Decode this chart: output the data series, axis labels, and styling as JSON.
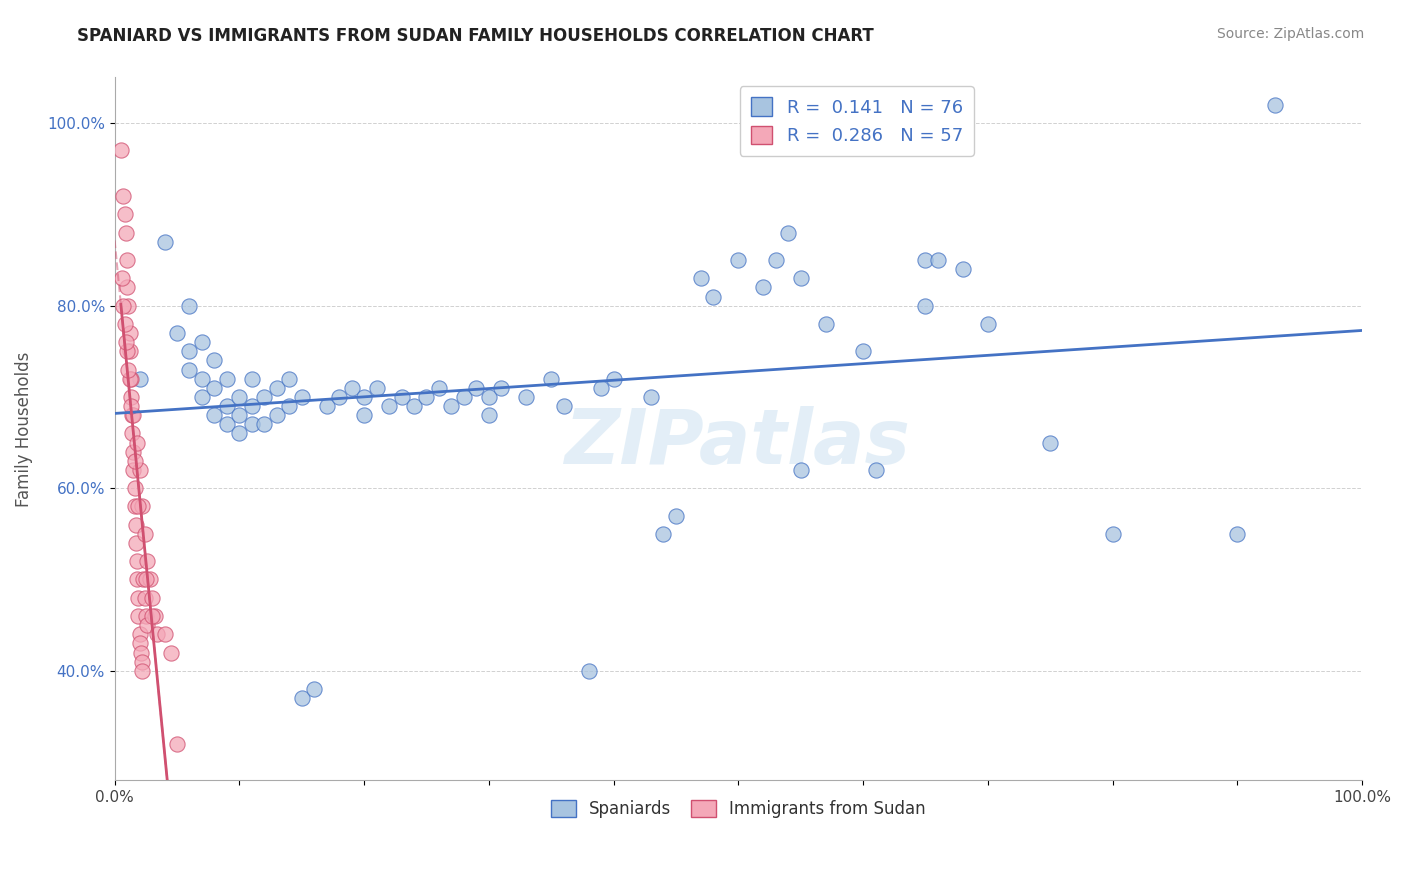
{
  "title": "SPANIARD VS IMMIGRANTS FROM SUDAN FAMILY HOUSEHOLDS CORRELATION CHART",
  "source": "Source: ZipAtlas.com",
  "xlabel": "",
  "ylabel": "Family Households",
  "xlim": [
    0.0,
    1.0
  ],
  "ylim": [
    0.28,
    1.05
  ],
  "xticks": [
    0.0,
    0.1,
    0.2,
    0.3,
    0.4,
    0.5,
    0.6,
    0.7,
    0.8,
    0.9,
    1.0
  ],
  "xtick_labels": [
    "0.0%",
    "",
    "",
    "",
    "",
    "",
    "",
    "",
    "",
    "",
    "100.0%"
  ],
  "ytick_labels": [
    "40.0%",
    "60.0%",
    "80.0%",
    "100.0%"
  ],
  "yticks": [
    0.4,
    0.6,
    0.8,
    1.0
  ],
  "blue_color": "#a8c4e0",
  "pink_color": "#f4a8b8",
  "blue_line_color": "#4472c4",
  "pink_line_color": "#d05070",
  "R_blue": 0.141,
  "N_blue": 76,
  "R_pink": 0.286,
  "N_pink": 57,
  "legend_label_blue": "Spaniards",
  "legend_label_pink": "Immigrants from Sudan",
  "watermark": "ZIPatlas",
  "blue_scatter": [
    [
      0.02,
      0.72
    ],
    [
      0.04,
      0.87
    ],
    [
      0.05,
      0.77
    ],
    [
      0.06,
      0.8
    ],
    [
      0.06,
      0.75
    ],
    [
      0.06,
      0.73
    ],
    [
      0.07,
      0.76
    ],
    [
      0.07,
      0.72
    ],
    [
      0.07,
      0.7
    ],
    [
      0.08,
      0.74
    ],
    [
      0.08,
      0.71
    ],
    [
      0.08,
      0.68
    ],
    [
      0.09,
      0.72
    ],
    [
      0.09,
      0.69
    ],
    [
      0.09,
      0.67
    ],
    [
      0.1,
      0.7
    ],
    [
      0.1,
      0.68
    ],
    [
      0.1,
      0.66
    ],
    [
      0.11,
      0.72
    ],
    [
      0.11,
      0.69
    ],
    [
      0.11,
      0.67
    ],
    [
      0.12,
      0.7
    ],
    [
      0.12,
      0.67
    ],
    [
      0.13,
      0.71
    ],
    [
      0.13,
      0.68
    ],
    [
      0.14,
      0.72
    ],
    [
      0.14,
      0.69
    ],
    [
      0.15,
      0.7
    ],
    [
      0.15,
      0.37
    ],
    [
      0.16,
      0.38
    ],
    [
      0.17,
      0.69
    ],
    [
      0.18,
      0.7
    ],
    [
      0.19,
      0.71
    ],
    [
      0.2,
      0.7
    ],
    [
      0.2,
      0.68
    ],
    [
      0.21,
      0.71
    ],
    [
      0.22,
      0.69
    ],
    [
      0.23,
      0.7
    ],
    [
      0.24,
      0.69
    ],
    [
      0.25,
      0.7
    ],
    [
      0.26,
      0.71
    ],
    [
      0.27,
      0.69
    ],
    [
      0.28,
      0.7
    ],
    [
      0.29,
      0.71
    ],
    [
      0.3,
      0.7
    ],
    [
      0.3,
      0.68
    ],
    [
      0.31,
      0.71
    ],
    [
      0.33,
      0.7
    ],
    [
      0.35,
      0.72
    ],
    [
      0.36,
      0.69
    ],
    [
      0.38,
      0.4
    ],
    [
      0.39,
      0.71
    ],
    [
      0.4,
      0.72
    ],
    [
      0.43,
      0.7
    ],
    [
      0.44,
      0.55
    ],
    [
      0.45,
      0.57
    ],
    [
      0.47,
      0.83
    ],
    [
      0.48,
      0.81
    ],
    [
      0.5,
      0.85
    ],
    [
      0.52,
      0.82
    ],
    [
      0.53,
      0.85
    ],
    [
      0.54,
      0.88
    ],
    [
      0.55,
      0.83
    ],
    [
      0.57,
      0.78
    ],
    [
      0.6,
      0.75
    ],
    [
      0.61,
      0.62
    ],
    [
      0.65,
      0.85
    ],
    [
      0.65,
      0.8
    ],
    [
      0.66,
      0.85
    ],
    [
      0.68,
      0.84
    ],
    [
      0.7,
      0.78
    ],
    [
      0.75,
      0.65
    ],
    [
      0.8,
      0.55
    ],
    [
      0.9,
      0.55
    ],
    [
      0.93,
      1.02
    ],
    [
      0.55,
      0.62
    ]
  ],
  "pink_scatter": [
    [
      0.005,
      0.97
    ],
    [
      0.007,
      0.92
    ],
    [
      0.008,
      0.9
    ],
    [
      0.009,
      0.88
    ],
    [
      0.01,
      0.85
    ],
    [
      0.01,
      0.82
    ],
    [
      0.011,
      0.8
    ],
    [
      0.012,
      0.77
    ],
    [
      0.012,
      0.75
    ],
    [
      0.013,
      0.72
    ],
    [
      0.013,
      0.7
    ],
    [
      0.014,
      0.68
    ],
    [
      0.014,
      0.66
    ],
    [
      0.015,
      0.64
    ],
    [
      0.015,
      0.62
    ],
    [
      0.016,
      0.6
    ],
    [
      0.016,
      0.58
    ],
    [
      0.017,
      0.56
    ],
    [
      0.017,
      0.54
    ],
    [
      0.018,
      0.52
    ],
    [
      0.018,
      0.5
    ],
    [
      0.019,
      0.48
    ],
    [
      0.019,
      0.46
    ],
    [
      0.02,
      0.44
    ],
    [
      0.02,
      0.43
    ],
    [
      0.021,
      0.42
    ],
    [
      0.022,
      0.41
    ],
    [
      0.022,
      0.4
    ],
    [
      0.023,
      0.5
    ],
    [
      0.024,
      0.48
    ],
    [
      0.025,
      0.46
    ],
    [
      0.026,
      0.45
    ],
    [
      0.028,
      0.5
    ],
    [
      0.03,
      0.48
    ],
    [
      0.032,
      0.46
    ],
    [
      0.034,
      0.44
    ],
    [
      0.01,
      0.75
    ],
    [
      0.012,
      0.72
    ],
    [
      0.015,
      0.68
    ],
    [
      0.018,
      0.65
    ],
    [
      0.02,
      0.62
    ],
    [
      0.022,
      0.58
    ],
    [
      0.024,
      0.55
    ],
    [
      0.026,
      0.52
    ],
    [
      0.006,
      0.83
    ],
    [
      0.007,
      0.8
    ],
    [
      0.008,
      0.78
    ],
    [
      0.009,
      0.76
    ],
    [
      0.011,
      0.73
    ],
    [
      0.013,
      0.69
    ],
    [
      0.016,
      0.63
    ],
    [
      0.019,
      0.58
    ],
    [
      0.025,
      0.5
    ],
    [
      0.03,
      0.46
    ],
    [
      0.04,
      0.44
    ],
    [
      0.045,
      0.42
    ],
    [
      0.05,
      0.32
    ]
  ]
}
